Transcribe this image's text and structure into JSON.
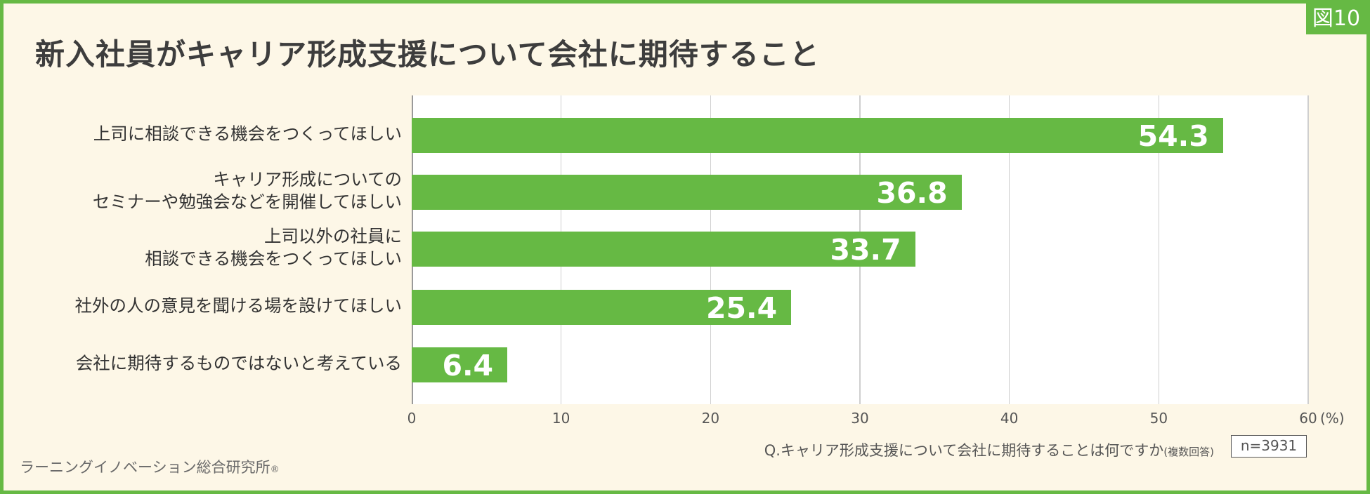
{
  "figure_tag": "図10",
  "chart_data": {
    "type": "bar",
    "orientation": "horizontal",
    "title": "新入社員がキャリア形成支援について会社に期待すること",
    "categories": [
      [
        "上司に相談できる機会をつくってほしい"
      ],
      [
        "キャリア形成についての",
        "セミナーや勉強会などを開催してほしい"
      ],
      [
        "上司以外の社員に",
        "相談できる機会をつくってほしい"
      ],
      [
        "社外の人の意見を聞ける場を設けてほしい"
      ],
      [
        "会社に期待するものではないと考えている"
      ]
    ],
    "values": [
      54.3,
      36.8,
      33.7,
      25.4,
      6.4
    ],
    "value_labels": [
      "54.3",
      "36.8",
      "33.7",
      "25.4",
      "6.4"
    ],
    "xlim": [
      0,
      60
    ],
    "ticks": [
      "0",
      "10",
      "20",
      "30",
      "40",
      "50",
      "60"
    ],
    "unit": "(%)",
    "grid": true,
    "bar_color": "#66b944"
  },
  "question": "Q.キャリア形成支援について会社に期待することは何ですか",
  "question_note": "(複数回答)",
  "sample_size": "n=3931",
  "source": "ラーニングイノベーション総合研究所",
  "source_mark": "®"
}
